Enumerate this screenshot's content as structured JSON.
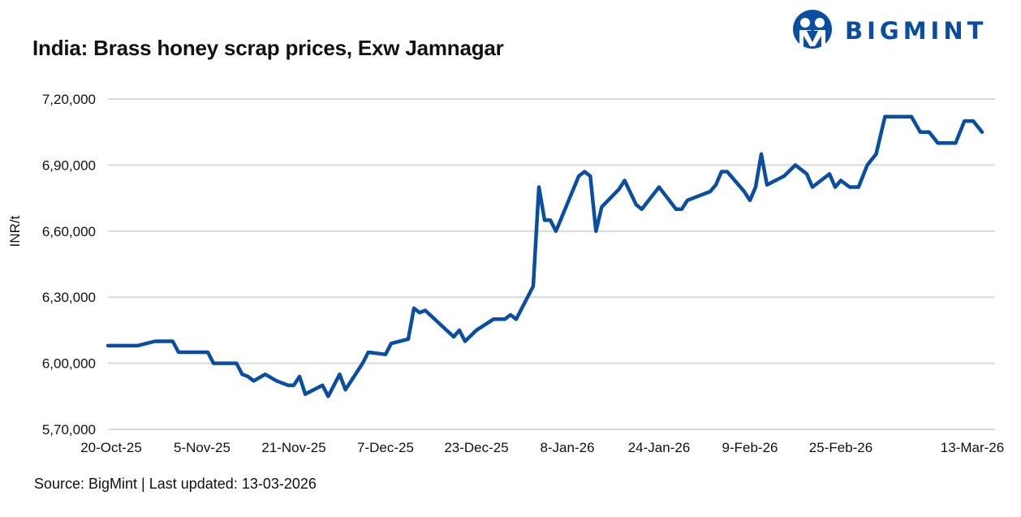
{
  "brand": {
    "logo_text": "BIGMINT",
    "color": "#0a4ea3"
  },
  "title": "India: Brass honey scrap prices, Exw Jamnagar",
  "source": "Source: BigMint | Last updated: 13-03-2026",
  "chart_data": {
    "type": "line",
    "title": "India: Brass honey scrap prices, Exw Jamnagar",
    "ylabel": "INR/t",
    "xlabel": "",
    "ylim": [
      570000,
      720000
    ],
    "yticks": [
      570000,
      600000,
      630000,
      660000,
      690000,
      720000
    ],
    "ytick_labels": [
      "5,70,000",
      "6,00,000",
      "6,30,000",
      "6,60,000",
      "6,90,000",
      "7,20,000"
    ],
    "xtick_labels": [
      "20-Oct-25",
      "5-Nov-25",
      "21-Nov-25",
      "7-Dec-25",
      "23-Dec-25",
      "8-Jan-26",
      "24-Jan-26",
      "9-Feb-26",
      "25-Feb-26",
      "13-Mar-26"
    ],
    "xticks": [
      "2025-10-20",
      "2025-11-05",
      "2025-11-21",
      "2025-12-07",
      "2025-12-23",
      "2026-01-08",
      "2026-01-24",
      "2026-02-09",
      "2026-02-25",
      "2026-03-13"
    ],
    "grid": "horizontal",
    "line_color": "#0a4ea3",
    "series": [
      {
        "points": [
          [
            "2025-10-20",
            608000
          ],
          [
            "2025-10-25",
            608000
          ],
          [
            "2025-10-28",
            610000
          ],
          [
            "2025-10-31",
            610000
          ],
          [
            "2025-11-01",
            605000
          ],
          [
            "2025-11-06",
            605000
          ],
          [
            "2025-11-07",
            600000
          ],
          [
            "2025-11-11",
            600000
          ],
          [
            "2025-11-12",
            595000
          ],
          [
            "2025-11-13",
            594000
          ],
          [
            "2025-11-14",
            592000
          ],
          [
            "2025-11-16",
            595000
          ],
          [
            "2025-11-18",
            592000
          ],
          [
            "2025-11-20",
            590000
          ],
          [
            "2025-11-21",
            590000
          ],
          [
            "2025-11-22",
            594000
          ],
          [
            "2025-11-23",
            586000
          ],
          [
            "2025-11-26",
            590000
          ],
          [
            "2025-11-27",
            585000
          ],
          [
            "2025-11-29",
            595000
          ],
          [
            "2025-11-30",
            588000
          ],
          [
            "2025-12-03",
            600000
          ],
          [
            "2025-12-04",
            605000
          ],
          [
            "2025-12-07",
            604000
          ],
          [
            "2025-12-08",
            609000
          ],
          [
            "2025-12-11",
            611000
          ],
          [
            "2025-12-12",
            625000
          ],
          [
            "2025-12-13",
            623000
          ],
          [
            "2025-12-14",
            624000
          ],
          [
            "2025-12-19",
            612000
          ],
          [
            "2025-12-20",
            615000
          ],
          [
            "2025-12-21",
            610000
          ],
          [
            "2025-12-23",
            615000
          ],
          [
            "2025-12-26",
            620000
          ],
          [
            "2025-12-28",
            620000
          ],
          [
            "2025-12-29",
            622000
          ],
          [
            "2025-12-30",
            620000
          ],
          [
            "2026-01-02",
            635000
          ],
          [
            "2026-01-03",
            680000
          ],
          [
            "2026-01-04",
            665000
          ],
          [
            "2026-01-05",
            665000
          ],
          [
            "2026-01-06",
            660000
          ],
          [
            "2026-01-10",
            685000
          ],
          [
            "2026-01-11",
            687000
          ],
          [
            "2026-01-12",
            685000
          ],
          [
            "2026-01-13",
            660000
          ],
          [
            "2026-01-14",
            671000
          ],
          [
            "2026-01-17",
            679000
          ],
          [
            "2026-01-18",
            683000
          ],
          [
            "2026-01-20",
            672000
          ],
          [
            "2026-01-21",
            670000
          ],
          [
            "2026-01-24",
            680000
          ],
          [
            "2026-01-27",
            670000
          ],
          [
            "2026-01-28",
            670000
          ],
          [
            "2026-01-29",
            674000
          ],
          [
            "2026-02-02",
            678000
          ],
          [
            "2026-02-03",
            681000
          ],
          [
            "2026-02-04",
            687000
          ],
          [
            "2026-02-05",
            687000
          ],
          [
            "2026-02-08",
            678000
          ],
          [
            "2026-02-09",
            674000
          ],
          [
            "2026-02-10",
            680000
          ],
          [
            "2026-02-11",
            695000
          ],
          [
            "2026-02-12",
            681000
          ],
          [
            "2026-02-15",
            685000
          ],
          [
            "2026-02-17",
            690000
          ],
          [
            "2026-02-19",
            686000
          ],
          [
            "2026-02-20",
            680000
          ],
          [
            "2026-02-23",
            686000
          ],
          [
            "2026-02-24",
            680000
          ],
          [
            "2026-02-25",
            683000
          ],
          [
            "2026-02-26",
            680000
          ],
          [
            "2026-02-27",
            680000
          ],
          [
            "2026-02-28",
            690000
          ],
          [
            "2026-03-01",
            695000
          ],
          [
            "2026-03-02",
            712000
          ],
          [
            "2026-03-05",
            712000
          ],
          [
            "2026-03-06",
            705000
          ],
          [
            "2026-03-07",
            705000
          ],
          [
            "2026-03-08",
            700000
          ],
          [
            "2026-03-10",
            700000
          ],
          [
            "2026-03-11",
            710000
          ],
          [
            "2026-03-12",
            710000
          ],
          [
            "2026-03-13",
            705000
          ]
        ]
      }
    ]
  }
}
